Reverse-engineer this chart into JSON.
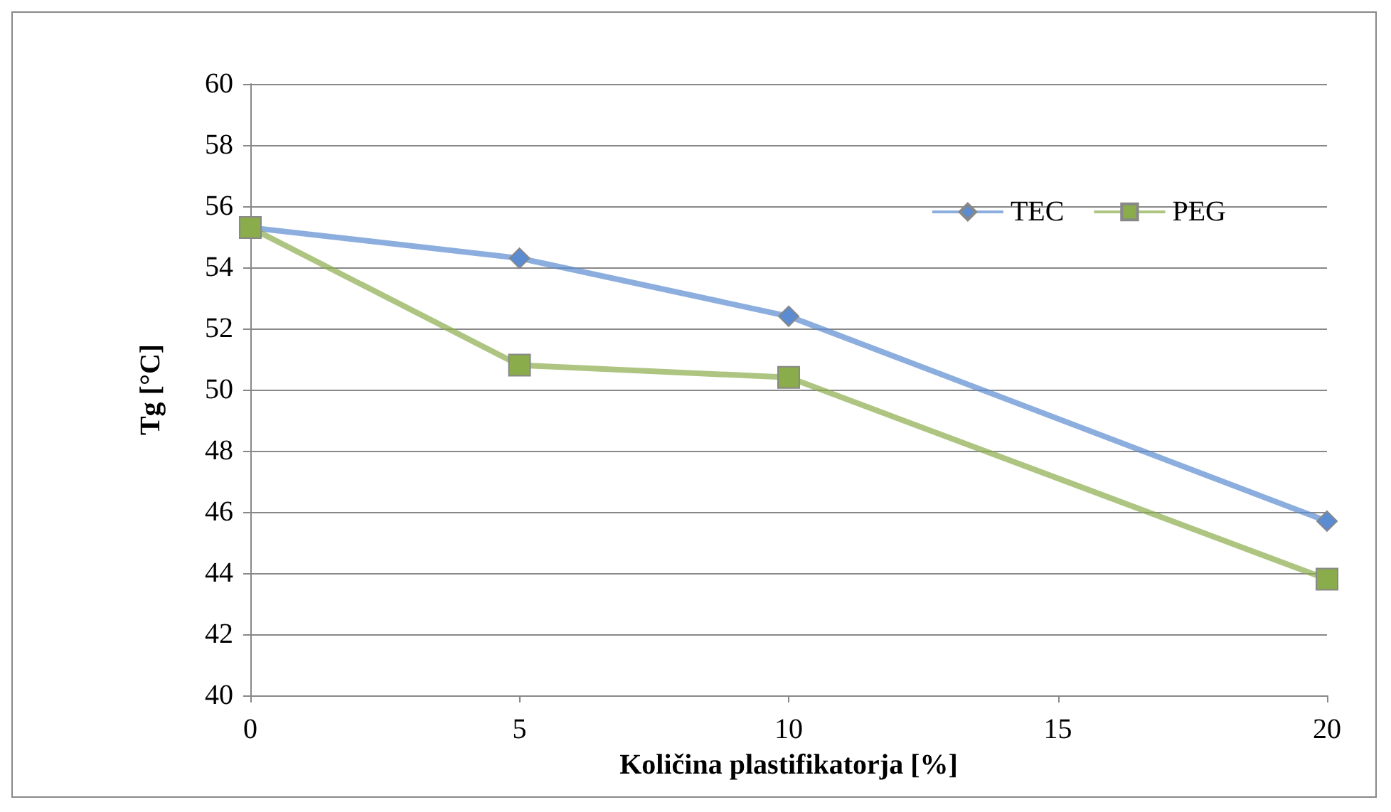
{
  "chart_data": {
    "type": "line",
    "xlabel": "Količina plastifikatorja [%]",
    "ylabel": "Tg [°C]",
    "x": [
      0,
      5,
      10,
      20
    ],
    "xlim": [
      0,
      20
    ],
    "xticks": [
      0,
      5,
      10,
      15,
      20
    ],
    "ylim": [
      40,
      60
    ],
    "yticks": [
      40,
      42,
      44,
      46,
      48,
      50,
      52,
      54,
      56,
      58,
      60
    ],
    "grid": "y",
    "legend": "top right",
    "line_style": "solid",
    "series": [
      {
        "name": "TEC",
        "color": "#5b8bd0",
        "marker": "diamond",
        "values": [
          55.3,
          54.3,
          52.4,
          45.7
        ]
      },
      {
        "name": "PEG",
        "color": "#8aac4a",
        "marker": "square",
        "values": [
          55.3,
          50.8,
          50.4,
          43.8
        ]
      }
    ]
  }
}
